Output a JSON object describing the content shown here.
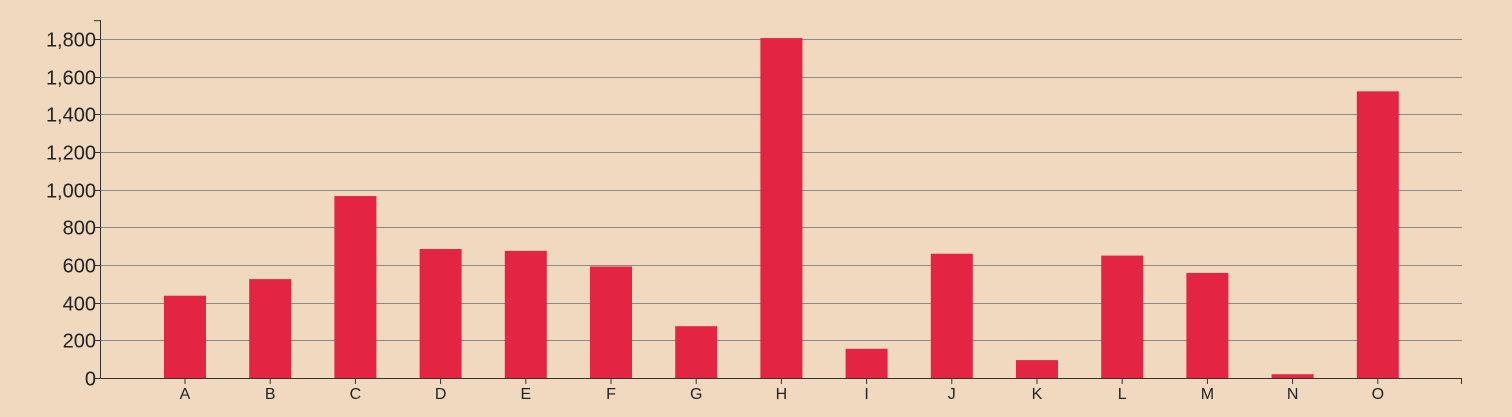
{
  "chart_data": {
    "type": "bar",
    "categories": [
      "A",
      "B",
      "C",
      "D",
      "E",
      "F",
      "G",
      "H",
      "I",
      "J",
      "K",
      "L",
      "M",
      "N",
      "O"
    ],
    "values": [
      437,
      525,
      966,
      685,
      675,
      592,
      275,
      1805,
      155,
      660,
      95,
      650,
      558,
      20,
      1522
    ],
    "title": "",
    "xlabel": "",
    "ylabel": "",
    "ylim": [
      0,
      1900
    ],
    "yticks": [
      0,
      200,
      400,
      600,
      800,
      1000,
      1200,
      1400,
      1600,
      1800
    ],
    "ytick_labels": [
      "0",
      "200",
      "400",
      "600",
      "800",
      "1,000",
      "1,200",
      "1,400",
      "1,600",
      "1,800"
    ],
    "grid": "horizontal",
    "legend": "none",
    "colors": {
      "background": "#f1d9c0",
      "bar": "#e32443",
      "gridline": "#8a8a8a",
      "axis": "#333333",
      "text": "#222222"
    }
  }
}
